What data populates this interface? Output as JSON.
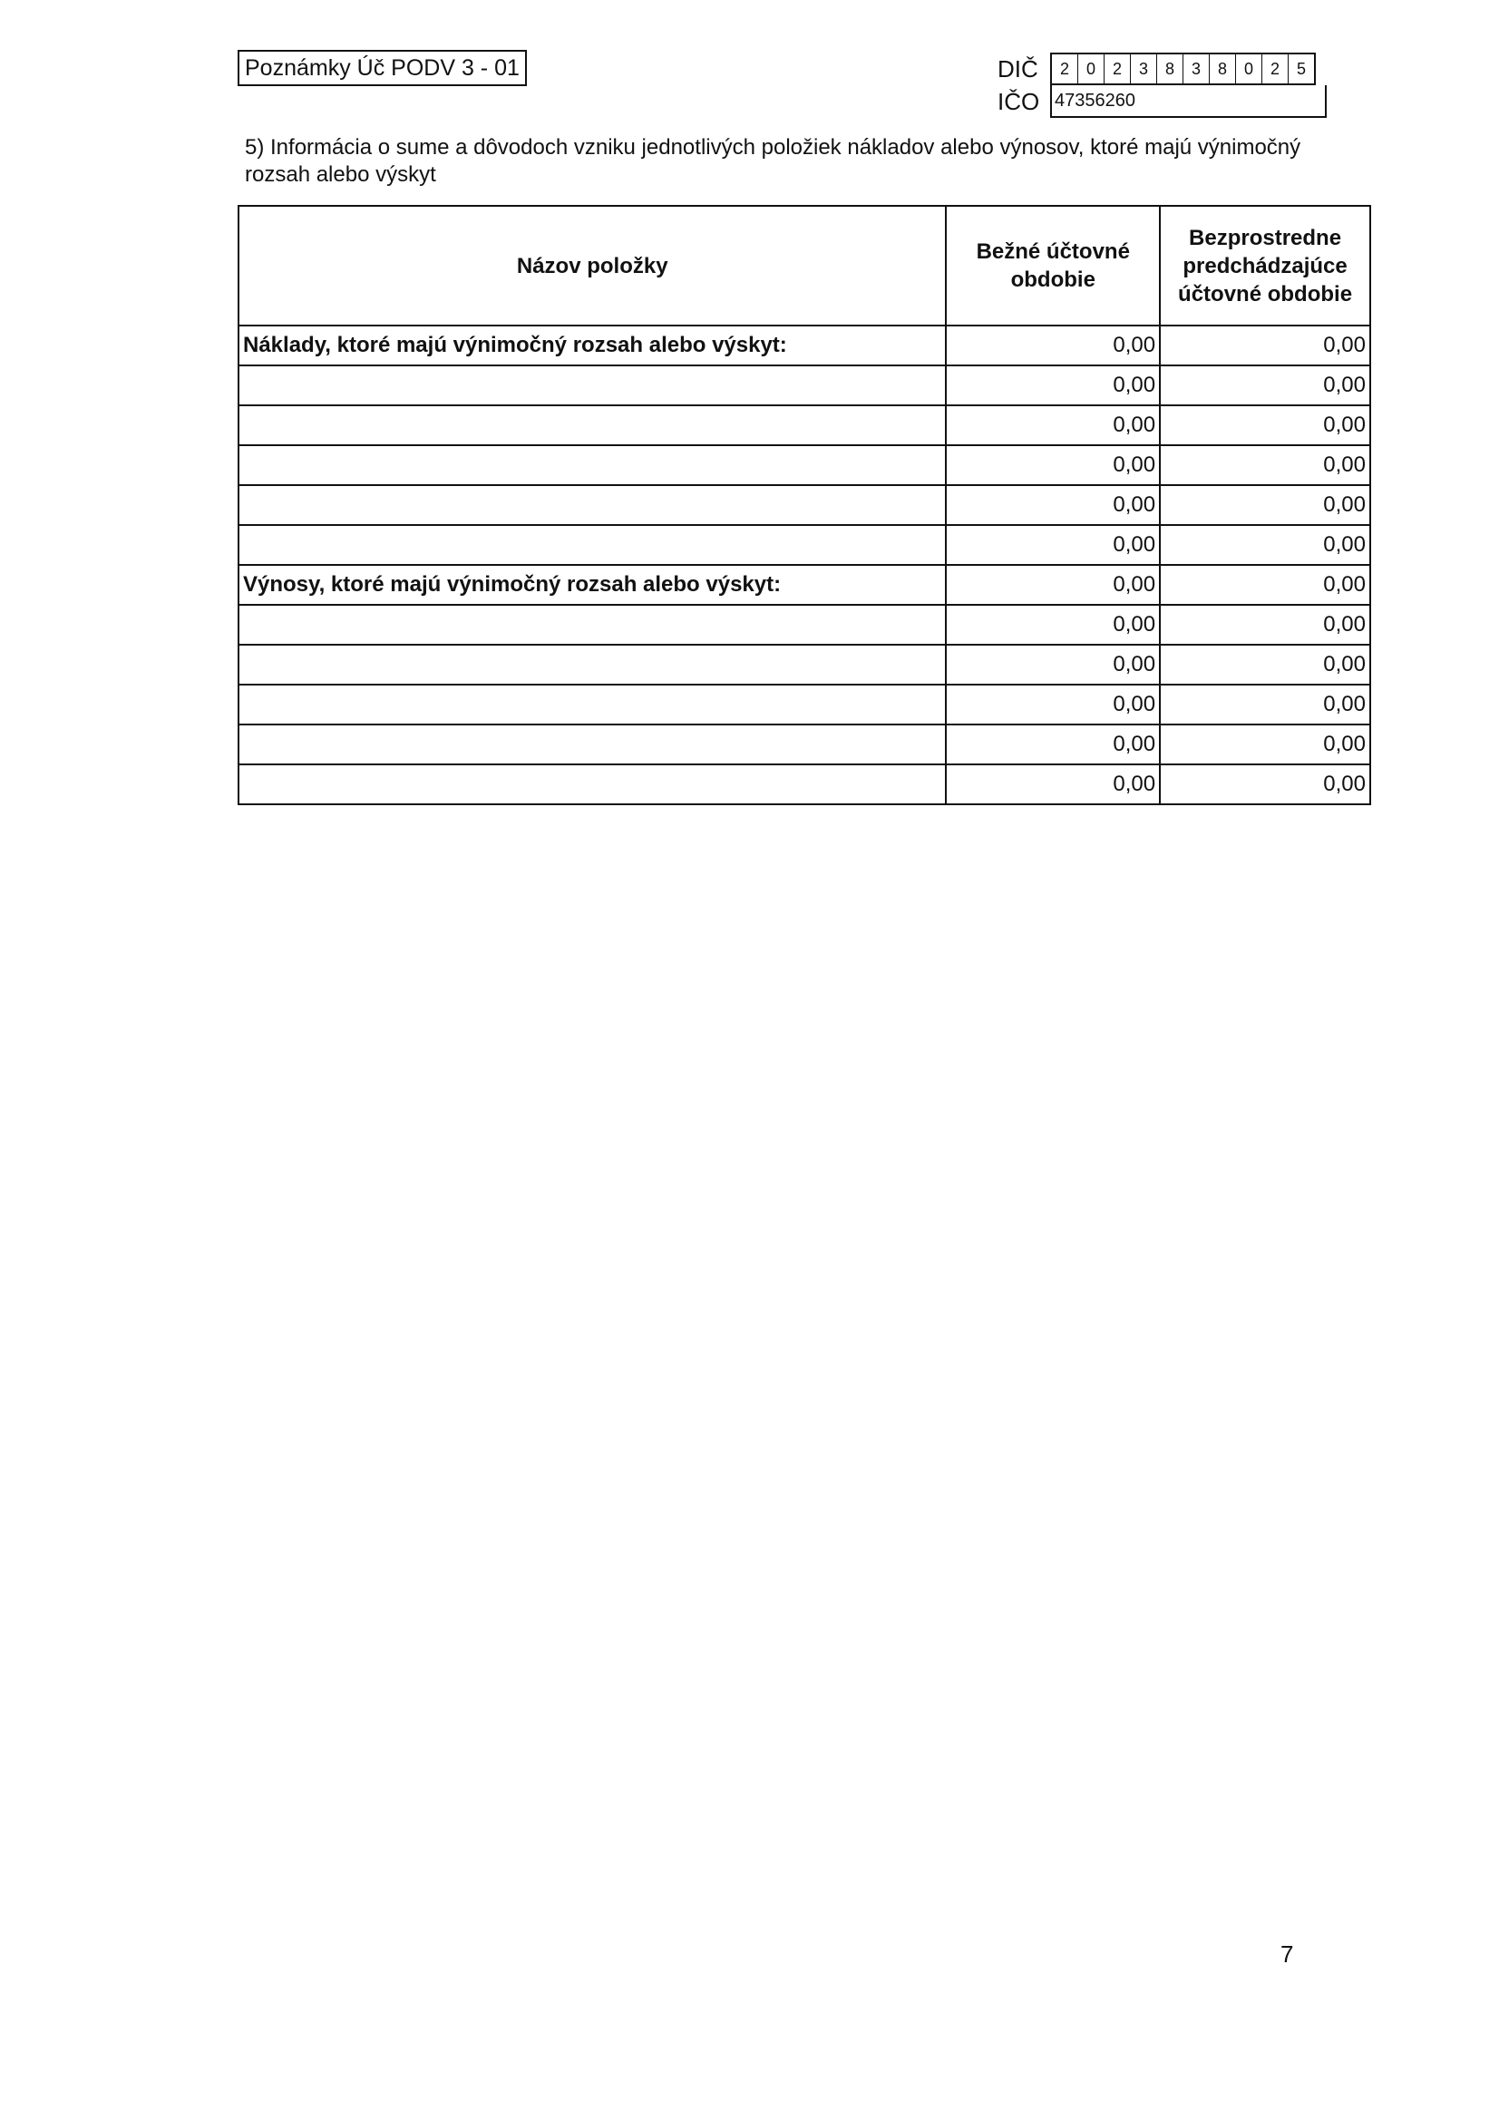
{
  "header": {
    "form_title": "Poznámky Úč PODV 3 - 01",
    "dic_label": "DIČ",
    "dic_digits": [
      "2",
      "0",
      "2",
      "3",
      "8",
      "3",
      "8",
      "0",
      "2",
      "5"
    ],
    "ico_label": "IČO",
    "ico_value": "47356260"
  },
  "section": {
    "heading": "5) Informácia o sume a dôvodoch vzniku jednotlivých položiek nákladov alebo výnosov, ktoré majú výnimočný rozsah alebo výskyt"
  },
  "table": {
    "columns": [
      "Názov položky",
      "Bežné účtovné obdobie",
      "Bezprostredne predchádzajúce účtovné obdobie"
    ],
    "rows": [
      {
        "name": "Náklady, ktoré majú výnimočný rozsah alebo výskyt:",
        "current": "0,00",
        "previous": "0,00"
      },
      {
        "name": "",
        "current": "0,00",
        "previous": "0,00"
      },
      {
        "name": "",
        "current": "0,00",
        "previous": "0,00"
      },
      {
        "name": "",
        "current": "0,00",
        "previous": "0,00"
      },
      {
        "name": "",
        "current": "0,00",
        "previous": "0,00"
      },
      {
        "name": "",
        "current": "0,00",
        "previous": "0,00"
      },
      {
        "name": "Výnosy, ktoré majú výnimočný rozsah alebo výskyt:",
        "current": "0,00",
        "previous": "0,00"
      },
      {
        "name": "",
        "current": "0,00",
        "previous": "0,00"
      },
      {
        "name": "",
        "current": "0,00",
        "previous": "0,00"
      },
      {
        "name": "",
        "current": "0,00",
        "previous": "0,00"
      },
      {
        "name": "",
        "current": "0,00",
        "previous": "0,00"
      },
      {
        "name": "",
        "current": "0,00",
        "previous": "0,00"
      }
    ]
  },
  "footer": {
    "page_number": "7"
  }
}
